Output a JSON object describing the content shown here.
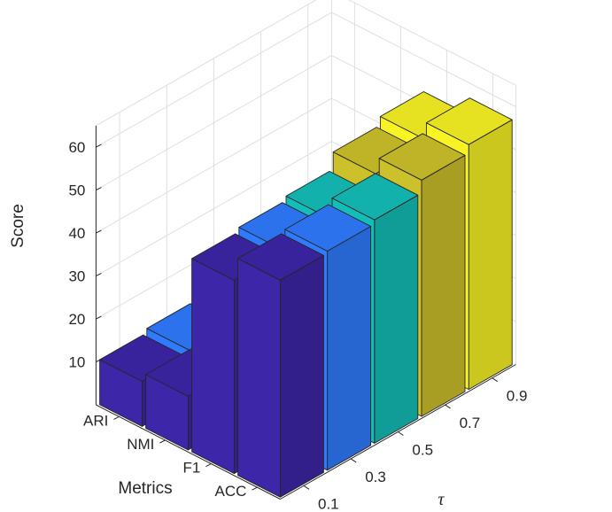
{
  "chart_data": {
    "type": "bar3d",
    "title": "",
    "xlabel": "τ",
    "ylabel": "Metrics",
    "zlabel": "Score",
    "x_categories": [
      "0.1",
      "0.3",
      "0.5",
      "0.7",
      "0.9"
    ],
    "y_categories": [
      "ACC",
      "F1",
      "NMI",
      "ARI"
    ],
    "zlim": [
      0,
      65
    ],
    "zticks": [
      "10",
      "20",
      "30",
      "40",
      "50",
      "60"
    ],
    "series": [
      {
        "name": "0.1",
        "color": "#3D26A8",
        "values": [
          50.5,
          45.0,
          12.5,
          10.5
        ]
      },
      {
        "name": "0.3",
        "color": "#2F7BFF",
        "values": [
          51.0,
          46.0,
          13.0,
          11.5
        ]
      },
      {
        "name": "0.5",
        "color": "#14BEB8",
        "values": [
          52.0,
          47.0,
          13.5,
          12.0
        ]
      },
      {
        "name": "0.7",
        "color": "#CDC12B",
        "values": [
          55.0,
          51.0,
          15.0,
          14.5
        ]
      },
      {
        "name": "0.9",
        "color": "#F7F324",
        "values": [
          57.0,
          53.0,
          13.5,
          15.5
        ]
      }
    ]
  }
}
